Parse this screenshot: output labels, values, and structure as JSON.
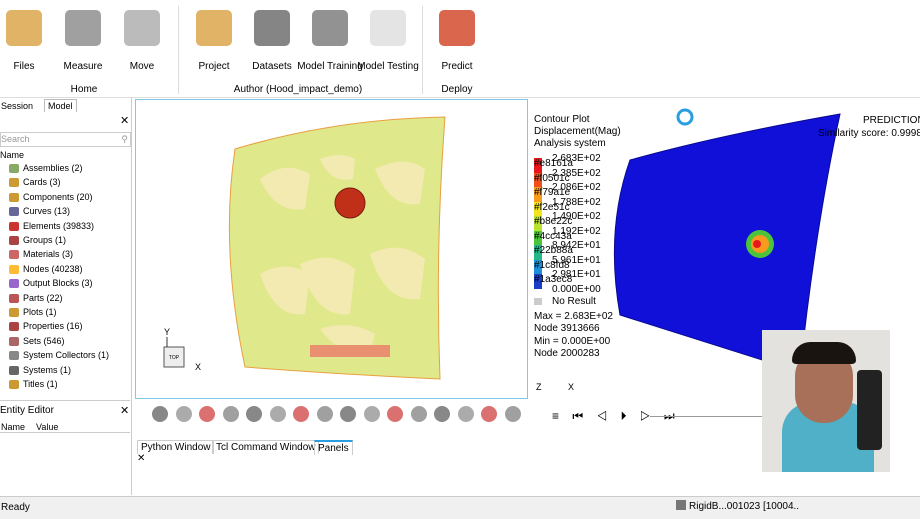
{
  "ribbon": {
    "buttons": [
      "Files",
      "Measure",
      "Move",
      "Project",
      "Datasets",
      "Model Training",
      "Model Testing",
      "Predict"
    ],
    "groups": [
      "Home",
      "Author (Hood_impact_demo)",
      "Deploy"
    ]
  },
  "left_panel": {
    "tabs": [
      "Session",
      "Model"
    ],
    "search": "Search",
    "column": "Name",
    "items": [
      "Assemblies (2)",
      "Cards (3)",
      "Components (20)",
      "Curves (13)",
      "Elements (39833)",
      "Groups (1)",
      "Materials (3)",
      "Nodes (40238)",
      "Output Blocks (3)",
      "Parts (22)",
      "Plots (1)",
      "Properties (16)",
      "Sets (546)",
      "System Collectors (1)",
      "Systems (1)",
      "Titles (1)"
    ]
  },
  "entity_editor": {
    "title": "Entity Editor",
    "columns": [
      "Name",
      "Value"
    ]
  },
  "viewport": {
    "axis_y": "Y",
    "axis_x": "X",
    "cube": "TOP"
  },
  "legend": {
    "title": "Contour Plot",
    "quantity": "Displacement(Mag)",
    "system": "Analysis system",
    "levels": [
      "2.683E+02",
      "2.385E+02",
      "2.086E+02",
      "1.788E+02",
      "1.490E+02",
      "1.192E+02",
      "8.942E+01",
      "5.961E+01",
      "2.981E+01",
      "0.000E+00"
    ],
    "colors": [
      "#e8161a",
      "#f0501c",
      "#f79a1e",
      "#f2e51c",
      "#b8e22c",
      "#4cc43a",
      "#22b88a",
      "#1c8fd8",
      "#1a3ec8"
    ],
    "no_result": "No Result",
    "max": "Max = 2.683E+02",
    "max_node": "Node 3913666",
    "min": "Min = 0.000E+00",
    "min_node": "Node 2000283"
  },
  "prediction": {
    "title": "PREDICTION",
    "score": "Similarity score: 0.9998",
    "axis_z": "Z",
    "axis_x": "X"
  },
  "bottom_tabs": [
    "Python Window",
    "Tcl Command Window",
    "Panels"
  ],
  "status": {
    "left": "Ready",
    "right": "RigidB...001023 [10004.."
  }
}
